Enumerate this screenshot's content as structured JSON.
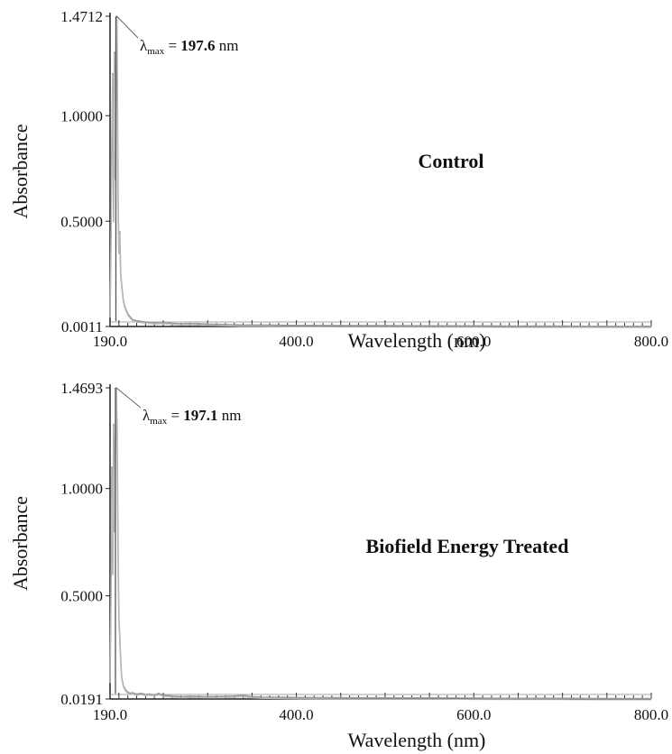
{
  "chart_data": [
    {
      "type": "line",
      "title": "",
      "label": "Control",
      "xlabel": "Wavelength (nm)",
      "ylabel": "Absorbance",
      "xlim": [
        190,
        800
      ],
      "ylim": [
        0.0011,
        1.4712
      ],
      "x_ticks": [
        "190.0",
        "400.0",
        "600.0",
        "800.0"
      ],
      "x_tick_values": [
        190,
        400,
        600,
        800
      ],
      "y_ticks": [
        "0.0011",
        "0.5000",
        "1.0000",
        "1.4712"
      ],
      "y_tick_values": [
        0.0011,
        0.5,
        1.0,
        1.4712
      ],
      "annotation": {
        "symbol": "λ",
        "sub": "max",
        "eq": " = ",
        "value": "197.6",
        "unit": " nm",
        "x": 197.6,
        "y": 1.4712
      },
      "series": [
        {
          "x": [
            190,
            191,
            192,
            193,
            194,
            195,
            196,
            197,
            197.6,
            198,
            199,
            200,
            201,
            202,
            203,
            205,
            207,
            210,
            215,
            220,
            225,
            230,
            240,
            250,
            260,
            270,
            280,
            300,
            320,
            340,
            360,
            380,
            400,
            450,
            500,
            550,
            600,
            650,
            700,
            750,
            800
          ],
          "y": [
            0.05,
            0.4,
            0.9,
            1.2,
            0.5,
            1.3,
            0.7,
            1.45,
            1.4712,
            1.3,
            0.6,
            0.35,
            0.45,
            0.25,
            0.2,
            0.12,
            0.09,
            0.06,
            0.035,
            0.028,
            0.025,
            0.022,
            0.018,
            0.02,
            0.016,
            0.014,
            0.015,
            0.012,
            0.01,
            0.008,
            0.008,
            0.007,
            0.006,
            0.005,
            0.005,
            0.004,
            0.004,
            0.003,
            0.003,
            0.002,
            0.002
          ]
        }
      ]
    },
    {
      "type": "line",
      "title": "",
      "label": "Biofield Energy Treated",
      "xlabel": "Wavelength (nm)",
      "ylabel": "Absorbance",
      "xlim": [
        190,
        800
      ],
      "ylim": [
        0.0191,
        1.4693
      ],
      "x_ticks": [
        "190.0",
        "400.0",
        "600.0",
        "800.0"
      ],
      "x_tick_values": [
        190,
        400,
        600,
        800
      ],
      "y_ticks": [
        "0.0191",
        "0.5000",
        "1.0000",
        "1.4693"
      ],
      "y_tick_values": [
        0.0191,
        0.5,
        1.0,
        1.4693
      ],
      "annotation": {
        "symbol": "λ",
        "sub": "max",
        "eq": " = ",
        "value": "197.1",
        "unit": " nm",
        "x": 197.1,
        "y": 1.4693
      },
      "series": [
        {
          "x": [
            190,
            191,
            192,
            193,
            194,
            195,
            196,
            197.1,
            198,
            199,
            200,
            201,
            202,
            203,
            205,
            207,
            210,
            213,
            215,
            220,
            225,
            230,
            235,
            240,
            245,
            250,
            260,
            270,
            280,
            300,
            320,
            340,
            350,
            360,
            380,
            400,
            450,
            500,
            550,
            600,
            650,
            700,
            750,
            800
          ],
          "y": [
            0.1,
            0.5,
            1.1,
            0.6,
            1.3,
            0.8,
            1.2,
            1.4693,
            1.25,
            0.7,
            0.4,
            0.3,
            0.2,
            0.12,
            0.08,
            0.065,
            0.05,
            0.045,
            0.048,
            0.042,
            0.045,
            0.04,
            0.042,
            0.038,
            0.045,
            0.036,
            0.033,
            0.03,
            0.032,
            0.03,
            0.031,
            0.035,
            0.03,
            0.028,
            0.027,
            0.026,
            0.025,
            0.024,
            0.024,
            0.023,
            0.022,
            0.022,
            0.021,
            0.021
          ]
        }
      ]
    }
  ]
}
